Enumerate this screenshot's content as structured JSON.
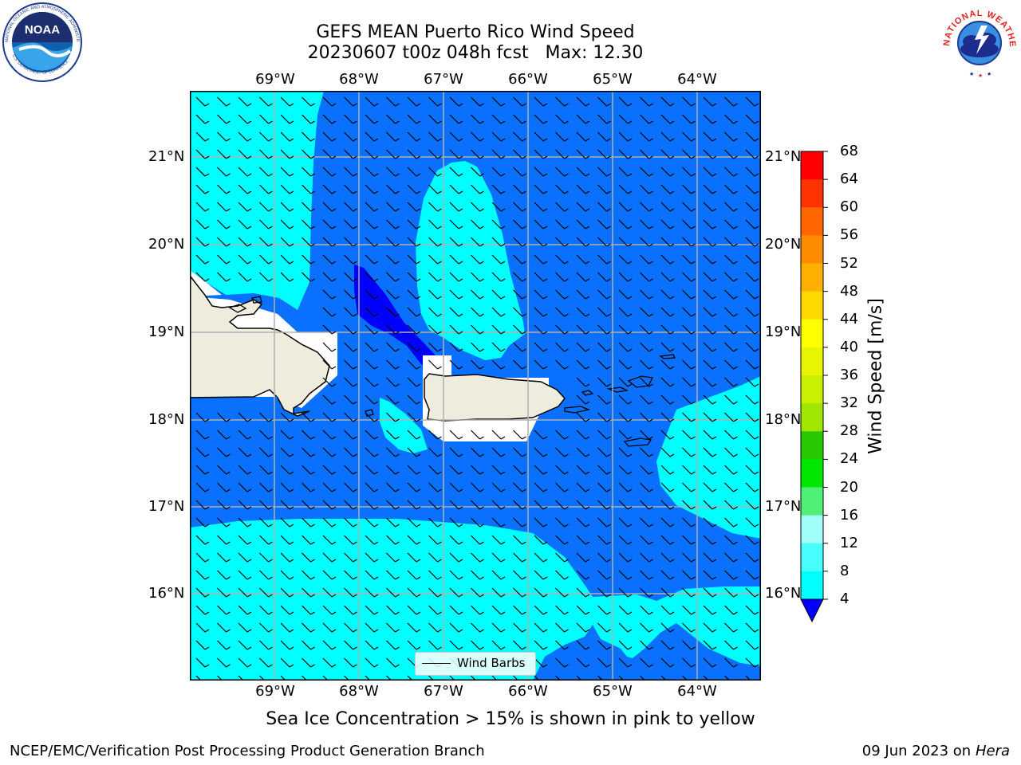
{
  "title": {
    "line1": "GEFS MEAN Puerto Rico Wind Speed",
    "line2": "20230607 t00z 048h fcst   Max: 12.30"
  },
  "axes": {
    "lon_ticks": [
      "69°W",
      "68°W",
      "67°W",
      "66°W",
      "65°W",
      "64°W"
    ],
    "lat_ticks": [
      "21°N",
      "20°N",
      "19°N",
      "18°N",
      "17°N",
      "16°N"
    ]
  },
  "colorbar": {
    "label": "Wind Speed [m/s]",
    "ticks": [
      "68",
      "64",
      "60",
      "56",
      "52",
      "48",
      "44",
      "40",
      "36",
      "32",
      "28",
      "24",
      "20",
      "16",
      "12",
      "8",
      "4"
    ],
    "colors": [
      "#ff0000",
      "#ff3300",
      "#ff6600",
      "#ff8c00",
      "#ffb000",
      "#ffd800",
      "#ffff00",
      "#e8f500",
      "#c8f000",
      "#a0e600",
      "#28c800",
      "#00e600",
      "#50f078",
      "#a0fff8",
      "#48ffff",
      "#00ffff",
      "#0064ff"
    ],
    "under_color": "#0000ff"
  },
  "map": {
    "colors": {
      "band_4_8": "#0a70ff",
      "band_8_12": "#00ffff",
      "band_under_4": "#0000ff",
      "land": "#eeecdc",
      "grid": "#b0b0b0"
    }
  },
  "legend": {
    "label": "Wind Barbs"
  },
  "footer": {
    "note": "Sea Ice Concentration > 15% is shown in pink to yellow",
    "left": "NCEP/EMC/Verification Post Processing Product Generation Branch",
    "right_prefix": "09 Jun 2023 on",
    "right_host": "Hera"
  },
  "logos": {
    "noaa": {
      "text": "NOAA",
      "ring_text": "NATIONAL OCEANIC AND ATMOSPHERIC ADMINISTRATION · U.S. DEPARTMENT OF COMMERCE"
    },
    "nws": {
      "ring_text": "NATIONAL WEATHER SERVICE"
    }
  }
}
